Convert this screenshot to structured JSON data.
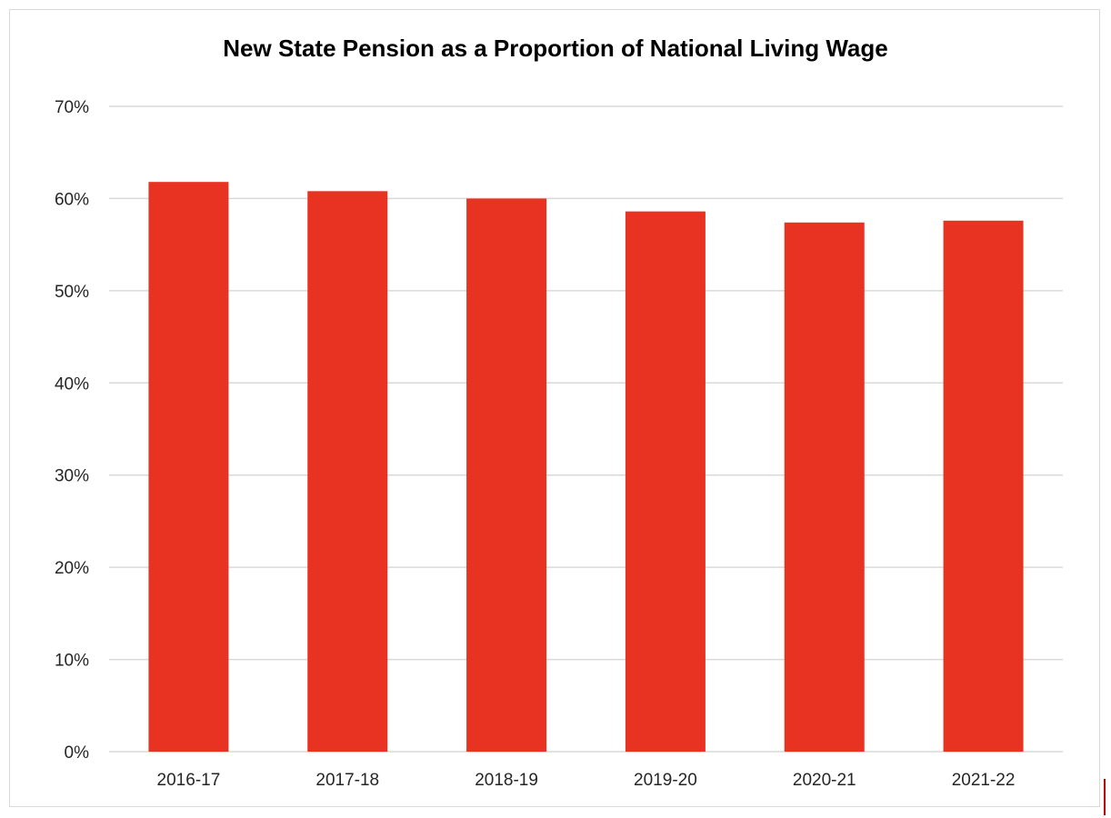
{
  "chart_data": {
    "type": "bar",
    "title": "New State Pension as a Proportion of National Living Wage",
    "categories": [
      "2016-17",
      "2017-18",
      "2018-19",
      "2019-20",
      "2020-21",
      "2021-22"
    ],
    "values": [
      0.618,
      0.608,
      0.6,
      0.586,
      0.574,
      0.576
    ],
    "ylim": [
      0,
      0.7
    ],
    "yticks": [
      0,
      0.1,
      0.2,
      0.3,
      0.4,
      0.5,
      0.6,
      0.7
    ],
    "ytick_labels": [
      "0%",
      "10%",
      "20%",
      "30%",
      "40%",
      "50%",
      "60%",
      "70%"
    ],
    "xlabel": "",
    "ylabel": "",
    "grid": true,
    "legend": "none",
    "bar_color": "#e83323",
    "grid_color": "#d9d9d9"
  }
}
